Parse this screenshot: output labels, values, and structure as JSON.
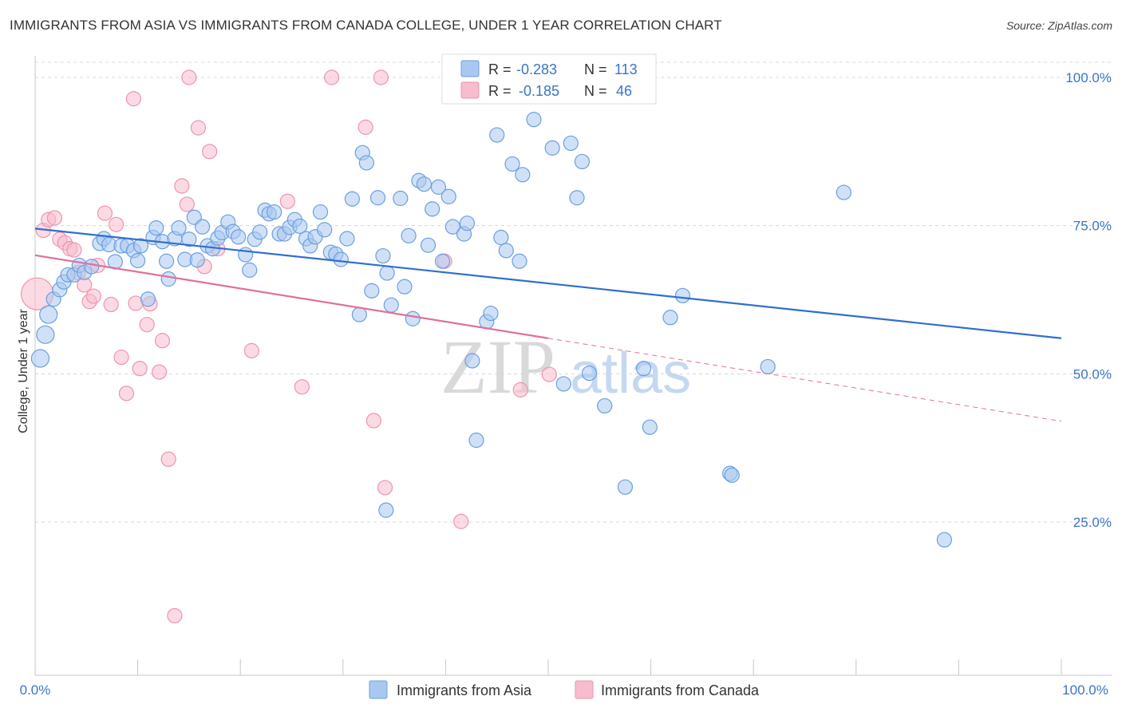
{
  "title": "IMMIGRANTS FROM ASIA VS IMMIGRANTS FROM CANADA COLLEGE, UNDER 1 YEAR CORRELATION CHART",
  "source": "Source: ZipAtlas.com",
  "watermark": {
    "zip": "ZIP",
    "atlas": "atlas"
  },
  "colors": {
    "asia_fill": "#a9c8f0",
    "asia_stroke": "#6b9fe0",
    "asia_line": "#2f6fcf",
    "canada_fill": "#f7bccd",
    "canada_stroke": "#ee94b0",
    "canada_line": "#e0709a",
    "tick_label": "#3a74c8",
    "grid": "#d8d8d8"
  },
  "legend": {
    "rows": [
      {
        "r_label": "R =",
        "r_value": "-0.283",
        "n_label": "N =",
        "n_value": "113"
      },
      {
        "r_label": "R =",
        "r_value": "-0.185",
        "n_label": "N =",
        "n_value": "46"
      }
    ]
  },
  "bottom_legend": [
    "Immigrants from Asia",
    "Immigrants from Canada"
  ],
  "chart_data": {
    "type": "scatter",
    "title": "IMMIGRANTS FROM ASIA VS IMMIGRANTS FROM CANADA COLLEGE, UNDER 1 YEAR CORRELATION CHART",
    "xlabel": "",
    "ylabel": "College, Under 1 year",
    "xlim": [
      0,
      100
    ],
    "ylim": [
      0,
      105
    ],
    "x_tick_labels": [
      "0.0%",
      "100.0%"
    ],
    "y_tick_labels": [
      "100.0%",
      "75.0%",
      "50.0%",
      "25.0%"
    ],
    "y_ticks": [
      100,
      75,
      50,
      25
    ],
    "grid": true,
    "legend_position": "top-center",
    "series": [
      {
        "name": "Immigrants from Asia",
        "r": -0.283,
        "n": 113,
        "trend": {
          "x": [
            0,
            100
          ],
          "y": [
            74.5,
            56.0
          ]
        },
        "points": [
          [
            0.5,
            52.6
          ],
          [
            1.0,
            56.6
          ],
          [
            1.3,
            60.0
          ],
          [
            1.8,
            62.6
          ],
          [
            2.4,
            64.2
          ],
          [
            2.8,
            65.5
          ],
          [
            3.2,
            66.7
          ],
          [
            3.8,
            66.7
          ],
          [
            4.3,
            68.3
          ],
          [
            4.8,
            67.1
          ],
          [
            5.5,
            68.1
          ],
          [
            6.3,
            72.0
          ],
          [
            6.7,
            72.8
          ],
          [
            7.2,
            71.8
          ],
          [
            7.8,
            68.9
          ],
          [
            8.4,
            71.6
          ],
          [
            9.0,
            71.6
          ],
          [
            9.6,
            70.8
          ],
          [
            10.0,
            69.1
          ],
          [
            10.3,
            71.6
          ],
          [
            11.0,
            62.6
          ],
          [
            11.5,
            73.0
          ],
          [
            11.8,
            74.6
          ],
          [
            12.4,
            72.3
          ],
          [
            12.8,
            69.0
          ],
          [
            13.6,
            72.8
          ],
          [
            14.0,
            74.6
          ],
          [
            14.6,
            69.3
          ],
          [
            15.0,
            72.7
          ],
          [
            15.5,
            76.4
          ],
          [
            15.8,
            69.2
          ],
          [
            16.3,
            74.8
          ],
          [
            16.8,
            71.6
          ],
          [
            17.3,
            71.1
          ],
          [
            17.8,
            72.9
          ],
          [
            18.2,
            73.8
          ],
          [
            18.8,
            75.6
          ],
          [
            19.3,
            74.0
          ],
          [
            19.8,
            73.1
          ],
          [
            20.5,
            70.1
          ],
          [
            20.9,
            67.5
          ],
          [
            21.4,
            72.7
          ],
          [
            21.9,
            73.9
          ],
          [
            22.4,
            77.6
          ],
          [
            22.8,
            77.0
          ],
          [
            23.3,
            77.3
          ],
          [
            23.8,
            73.6
          ],
          [
            24.3,
            73.6
          ],
          [
            24.8,
            74.7
          ],
          [
            25.3,
            76.0
          ],
          [
            25.8,
            74.9
          ],
          [
            26.4,
            72.8
          ],
          [
            26.8,
            71.6
          ],
          [
            27.3,
            73.1
          ],
          [
            27.8,
            77.3
          ],
          [
            28.2,
            74.3
          ],
          [
            28.8,
            70.5
          ],
          [
            29.3,
            70.2
          ],
          [
            29.8,
            69.3
          ],
          [
            30.4,
            72.8
          ],
          [
            30.9,
            79.5
          ],
          [
            31.6,
            60.0
          ],
          [
            31.9,
            87.3
          ],
          [
            32.3,
            85.6
          ],
          [
            32.8,
            64.0
          ],
          [
            33.4,
            79.7
          ],
          [
            33.9,
            69.9
          ],
          [
            34.3,
            67.0
          ],
          [
            34.7,
            61.6
          ],
          [
            35.6,
            79.6
          ],
          [
            36.0,
            64.7
          ],
          [
            36.4,
            73.3
          ],
          [
            36.8,
            59.3
          ],
          [
            37.4,
            82.6
          ],
          [
            37.9,
            82.0
          ],
          [
            38.3,
            71.7
          ],
          [
            38.7,
            77.8
          ],
          [
            39.3,
            81.5
          ],
          [
            39.7,
            69.0
          ],
          [
            40.3,
            79.9
          ],
          [
            40.7,
            74.8
          ],
          [
            41.8,
            73.6
          ],
          [
            42.1,
            75.4
          ],
          [
            42.6,
            52.2
          ],
          [
            43.0,
            38.8
          ],
          [
            44.0,
            58.8
          ],
          [
            44.4,
            60.2
          ],
          [
            45.0,
            90.3
          ],
          [
            45.4,
            73.0
          ],
          [
            45.9,
            70.8
          ],
          [
            46.5,
            85.4
          ],
          [
            47.2,
            69.0
          ],
          [
            47.5,
            83.6
          ],
          [
            48.6,
            92.9
          ],
          [
            50.4,
            88.1
          ],
          [
            51.5,
            48.3
          ],
          [
            52.2,
            88.9
          ],
          [
            52.8,
            79.7
          ],
          [
            53.3,
            85.8
          ],
          [
            54.0,
            50.1
          ],
          [
            55.5,
            44.6
          ],
          [
            57.5,
            30.9
          ],
          [
            59.3,
            50.9
          ],
          [
            59.9,
            41.0
          ],
          [
            61.9,
            59.5
          ],
          [
            63.1,
            63.2
          ],
          [
            67.7,
            33.2
          ],
          [
            67.9,
            32.9
          ],
          [
            71.4,
            51.2
          ],
          [
            78.8,
            80.6
          ],
          [
            88.6,
            22.0
          ],
          [
            34.2,
            27.0
          ],
          [
            13.0,
            66.0
          ]
        ]
      },
      {
        "name": "Immigrants from Canada",
        "r": -0.185,
        "n": 46,
        "trend": {
          "x": [
            0,
            50
          ],
          "y": [
            70.0,
            56.0
          ]
        },
        "trend_dashed": {
          "x": [
            50,
            100
          ],
          "y": [
            56.0,
            42.0
          ]
        },
        "points": [
          [
            0.2,
            63.5
          ],
          [
            0.8,
            74.2
          ],
          [
            1.3,
            76.0
          ],
          [
            1.9,
            76.3
          ],
          [
            2.4,
            72.7
          ],
          [
            2.9,
            72.1
          ],
          [
            3.4,
            71.1
          ],
          [
            3.8,
            70.9
          ],
          [
            4.2,
            67.1
          ],
          [
            4.8,
            65.0
          ],
          [
            5.3,
            62.2
          ],
          [
            5.7,
            63.1
          ],
          [
            6.1,
            68.3
          ],
          [
            6.8,
            77.1
          ],
          [
            7.4,
            61.7
          ],
          [
            7.9,
            75.2
          ],
          [
            8.4,
            52.8
          ],
          [
            8.9,
            46.7
          ],
          [
            9.6,
            96.4
          ],
          [
            9.8,
            61.9
          ],
          [
            10.2,
            50.9
          ],
          [
            10.9,
            58.3
          ],
          [
            11.2,
            61.8
          ],
          [
            12.1,
            50.3
          ],
          [
            12.4,
            55.6
          ],
          [
            13.0,
            35.6
          ],
          [
            13.6,
            9.2
          ],
          [
            14.3,
            81.7
          ],
          [
            14.8,
            78.6
          ],
          [
            15.0,
            100.0
          ],
          [
            15.9,
            91.5
          ],
          [
            16.5,
            68.1
          ],
          [
            17.0,
            87.5
          ],
          [
            17.8,
            71.1
          ],
          [
            21.1,
            53.9
          ],
          [
            24.6,
            79.1
          ],
          [
            26.0,
            47.8
          ],
          [
            28.9,
            100.0
          ],
          [
            32.2,
            91.6
          ],
          [
            33.0,
            42.1
          ],
          [
            33.7,
            100.0
          ],
          [
            34.1,
            30.8
          ],
          [
            39.9,
            69.0
          ],
          [
            41.5,
            25.1
          ],
          [
            47.3,
            47.3
          ],
          [
            50.1,
            49.9
          ]
        ]
      }
    ]
  }
}
